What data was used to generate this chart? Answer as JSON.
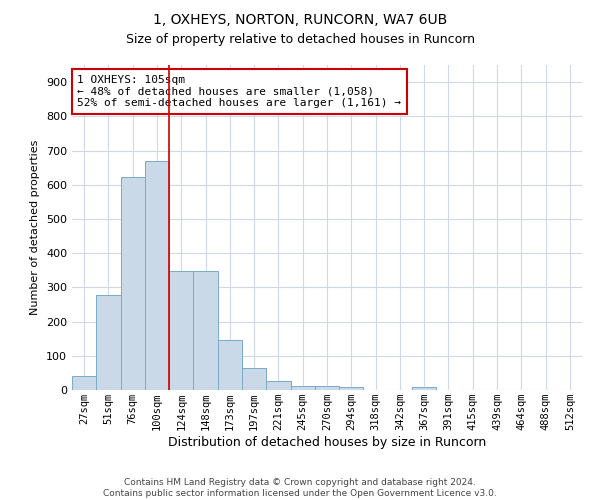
{
  "title_line1": "1, OXHEYS, NORTON, RUNCORN, WA7 6UB",
  "title_line2": "Size of property relative to detached houses in Runcorn",
  "xlabel": "Distribution of detached houses by size in Runcorn",
  "ylabel": "Number of detached properties",
  "footnote": "Contains HM Land Registry data © Crown copyright and database right 2024.\nContains public sector information licensed under the Open Government Licence v3.0.",
  "bar_labels": [
    "27sqm",
    "51sqm",
    "76sqm",
    "100sqm",
    "124sqm",
    "148sqm",
    "173sqm",
    "197sqm",
    "221sqm",
    "245sqm",
    "270sqm",
    "294sqm",
    "318sqm",
    "342sqm",
    "367sqm",
    "391sqm",
    "415sqm",
    "439sqm",
    "464sqm",
    "488sqm",
    "512sqm"
  ],
  "bar_values": [
    40,
    278,
    622,
    668,
    348,
    348,
    147,
    65,
    27,
    13,
    11,
    10,
    0,
    0,
    8,
    0,
    0,
    0,
    0,
    0,
    0
  ],
  "bar_color": "#c9d9e8",
  "bar_edge_color": "#7aaac8",
  "grid_color": "#d0d8e8",
  "annotation_text": "1 OXHEYS: 105sqm\n← 48% of detached houses are smaller (1,058)\n52% of semi-detached houses are larger (1,161) →",
  "annotation_box_color": "#ffffff",
  "annotation_box_edge_color": "#cc0000",
  "vline_x": 3.5,
  "vline_color": "#cc0000",
  "ylim": [
    0,
    950
  ],
  "yticks": [
    0,
    100,
    200,
    300,
    400,
    500,
    600,
    700,
    800,
    900
  ],
  "background_color": "#ffffff",
  "title1_fontsize": 10,
  "title2_fontsize": 9,
  "ylabel_fontsize": 8,
  "xlabel_fontsize": 9,
  "tick_fontsize": 7.5,
  "footnote_fontsize": 6.5
}
